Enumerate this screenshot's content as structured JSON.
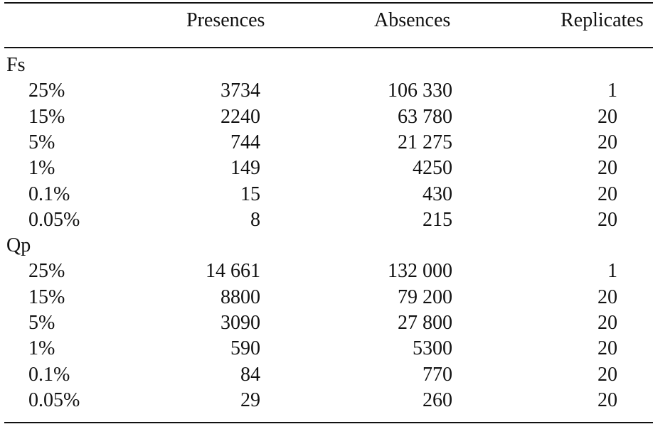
{
  "table": {
    "headers": {
      "label": "",
      "presences": "Presences",
      "absences": "Absences",
      "replicates": "Replicates"
    },
    "groups": [
      {
        "name": "Fs",
        "rows": [
          {
            "label": "25%",
            "presences": "3734",
            "absences": "106 330",
            "replicates": "1"
          },
          {
            "label": "15%",
            "presences": "2240",
            "absences": "63 780",
            "replicates": "20"
          },
          {
            "label": "5%",
            "presences": "744",
            "absences": "21 275",
            "replicates": "20"
          },
          {
            "label": "1%",
            "presences": "149",
            "absences": "4250",
            "replicates": "20"
          },
          {
            "label": "0.1%",
            "presences": "15",
            "absences": "430",
            "replicates": "20"
          },
          {
            "label": "0.05%",
            "presences": "8",
            "absences": "215",
            "replicates": "20"
          }
        ]
      },
      {
        "name": "Qp",
        "rows": [
          {
            "label": "25%",
            "presences": "14 661",
            "absences": "132 000",
            "replicates": "1"
          },
          {
            "label": "15%",
            "presences": "8800",
            "absences": "79 200",
            "replicates": "20"
          },
          {
            "label": "5%",
            "presences": "3090",
            "absences": "27 800",
            "replicates": "20"
          },
          {
            "label": "1%",
            "presences": "590",
            "absences": "5300",
            "replicates": "20"
          },
          {
            "label": "0.1%",
            "presences": "84",
            "absences": "770",
            "replicates": "20"
          },
          {
            "label": "0.05%",
            "presences": "29",
            "absences": "260",
            "replicates": "20"
          }
        ]
      }
    ]
  }
}
